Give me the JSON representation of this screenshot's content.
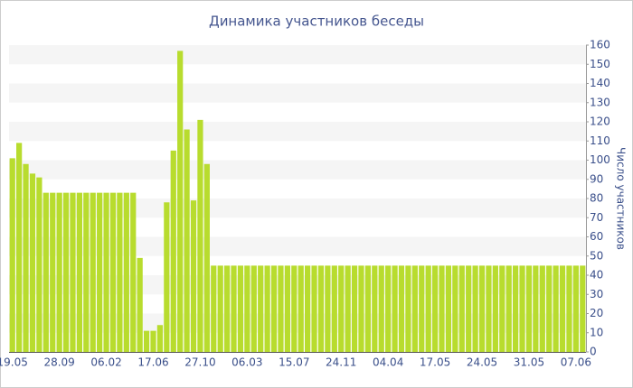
{
  "chart_data": {
    "type": "bar",
    "title": "Динамика участников беседы",
    "y_label": "Число участников",
    "categories": [
      "19.05",
      null,
      null,
      null,
      null,
      null,
      null,
      "28.09",
      null,
      null,
      null,
      null,
      null,
      null,
      "06.02",
      null,
      null,
      null,
      null,
      null,
      null,
      "17.06",
      null,
      null,
      null,
      null,
      null,
      null,
      "27.10",
      null,
      null,
      null,
      null,
      null,
      null,
      "06.03",
      null,
      null,
      null,
      null,
      null,
      null,
      "15.07",
      null,
      null,
      null,
      null,
      null,
      null,
      "24.11",
      null,
      null,
      null,
      null,
      null,
      null,
      "04.04",
      null,
      null,
      null,
      null,
      null,
      null,
      "17.05",
      null,
      null,
      null,
      null,
      null,
      null,
      "24.05",
      null,
      null,
      null,
      null,
      null,
      null,
      "31.05",
      null,
      null,
      null,
      null,
      null,
      null,
      "07.06",
      null
    ],
    "values": [
      101,
      109,
      98,
      93,
      91,
      83,
      83,
      83,
      83,
      83,
      83,
      83,
      83,
      83,
      83,
      83,
      83,
      83,
      83,
      49,
      11,
      11,
      14,
      78,
      105,
      157,
      116,
      79,
      121,
      98,
      45,
      45,
      45,
      45,
      45,
      45,
      45,
      45,
      45,
      45,
      45,
      45,
      45,
      45,
      45,
      45,
      45,
      45,
      45,
      45,
      45,
      45,
      45,
      45,
      45,
      45,
      45,
      45,
      45,
      45,
      45,
      45,
      45,
      45,
      45,
      45,
      45,
      45,
      45,
      45,
      45,
      45,
      45,
      45,
      45,
      45,
      45,
      45,
      45,
      45,
      45,
      45,
      45,
      45,
      45,
      45
    ],
    "color": "#b8dc2e",
    "ylim": [
      0,
      160
    ],
    "yticks": [
      0,
      10,
      20,
      30,
      40,
      50,
      60,
      70,
      80,
      90,
      100,
      110,
      120,
      130,
      140,
      150,
      160
    ],
    "grid": true
  }
}
